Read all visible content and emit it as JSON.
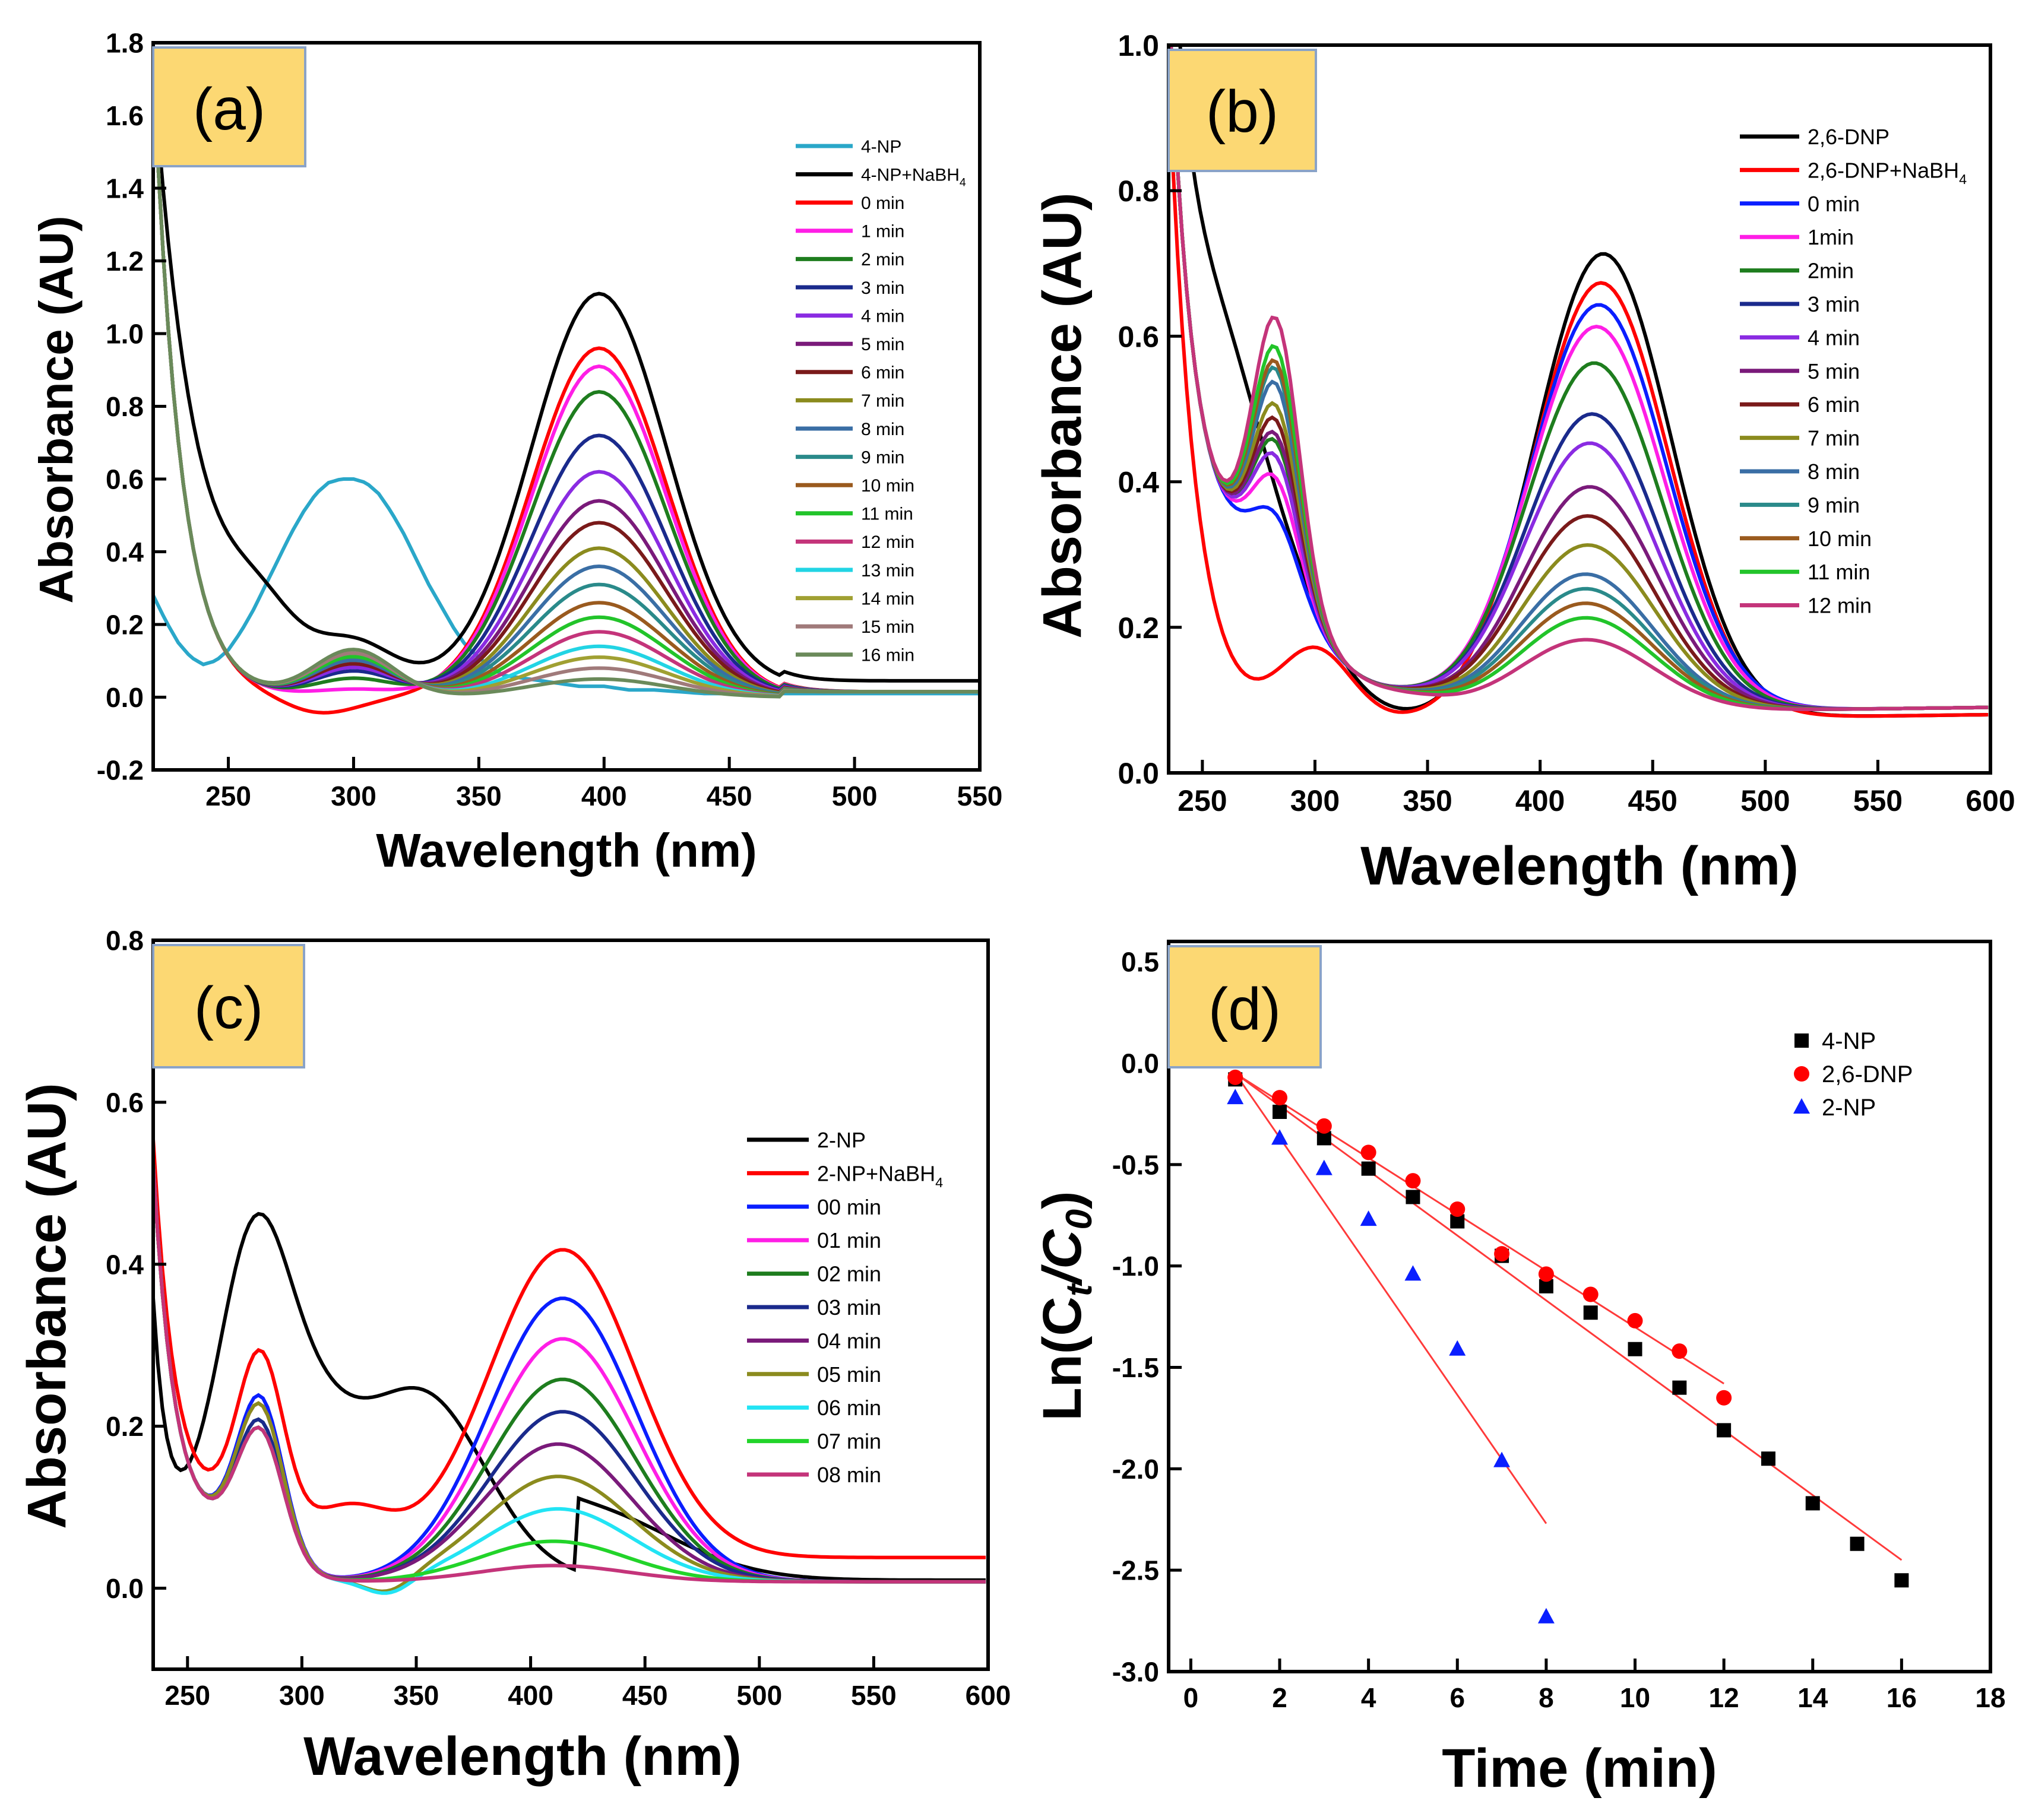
{
  "chart_data": [
    {
      "panel": "(a)",
      "type": "line",
      "xlabel": "Wavelength (nm)",
      "ylabel": "Absorbance (AU)",
      "xlim": [
        220,
        550
      ],
      "ylim": [
        -0.2,
        1.8
      ],
      "xticks": [
        250,
        300,
        350,
        400,
        450,
        500,
        550
      ],
      "yticks": [
        -0.2,
        0.0,
        0.2,
        0.4,
        0.6,
        0.8,
        1.0,
        1.2,
        1.4,
        1.6,
        1.8
      ],
      "legend_position": "top-right",
      "series": [
        {
          "name": "4-NP",
          "color": "#2aa7c9",
          "x": [
            220,
            225,
            230,
            235,
            240,
            245,
            250,
            255,
            260,
            265,
            270,
            275,
            280,
            285,
            290,
            295,
            300,
            305,
            310,
            315,
            320,
            325,
            330,
            335,
            340,
            345,
            350,
            355,
            360,
            370,
            380,
            390,
            400,
            410,
            420,
            440,
            460,
            480,
            500,
            520,
            550
          ],
          "values": [
            0.28,
            0.21,
            0.15,
            0.11,
            0.09,
            0.1,
            0.13,
            0.18,
            0.24,
            0.31,
            0.38,
            0.45,
            0.51,
            0.56,
            0.59,
            0.6,
            0.6,
            0.59,
            0.56,
            0.51,
            0.45,
            0.38,
            0.31,
            0.25,
            0.19,
            0.14,
            0.11,
            0.08,
            0.06,
            0.05,
            0.04,
            0.03,
            0.03,
            0.02,
            0.02,
            0.01,
            0.01,
            0.01,
            0.01,
            0.01,
            0.01
          ]
        },
        {
          "name": "4-NP+NaBH₄",
          "color": "#000000",
          "peak400": 1.08,
          "peak300": 0.11,
          "base270": 0.25
        },
        {
          "name": "0 min",
          "color": "#ff0000",
          "peak400": 0.96,
          "peak300": -0.01
        },
        {
          "name": "1 min",
          "color": "#ff1ee6",
          "peak400": 0.91,
          "peak300": 0.02
        },
        {
          "name": "2 min",
          "color": "#1e7d1e",
          "peak400": 0.84,
          "peak300": 0.05
        },
        {
          "name": "3 min",
          "color": "#1a2a8c",
          "peak400": 0.72,
          "peak300": 0.07
        },
        {
          "name": "4 min",
          "color": "#8a2be2",
          "peak400": 0.62,
          "peak300": 0.08
        },
        {
          "name": "5 min",
          "color": "#7a1a7a",
          "peak400": 0.54,
          "peak300": 0.09
        },
        {
          "name": "6 min",
          "color": "#7a1a1a",
          "peak400": 0.48,
          "peak300": 0.09
        },
        {
          "name": "7 min",
          "color": "#8b8b1e",
          "peak400": 0.41,
          "peak300": 0.1
        },
        {
          "name": "8 min",
          "color": "#3a6ea5",
          "peak400": 0.36,
          "peak300": 0.1
        },
        {
          "name": "9 min",
          "color": "#2a8a8a",
          "peak400": 0.31,
          "peak300": 0.11
        },
        {
          "name": "10 min",
          "color": "#9a5a1e",
          "peak400": 0.26,
          "peak300": 0.11
        },
        {
          "name": "11 min",
          "color": "#22c42a",
          "peak400": 0.22,
          "peak300": 0.11
        },
        {
          "name": "12 min",
          "color": "#c4347a",
          "peak400": 0.18,
          "peak300": 0.12
        },
        {
          "name": "13 min",
          "color": "#22d4e4",
          "peak400": 0.14,
          "peak300": 0.12
        },
        {
          "name": "14 min",
          "color": "#a0a032",
          "peak400": 0.11,
          "peak300": 0.12
        },
        {
          "name": "15 min",
          "color": "#a07a7a",
          "peak400": 0.08,
          "peak300": 0.12
        },
        {
          "name": "16 min",
          "color": "#6a8a5a",
          "peak400": 0.05,
          "peak300": 0.13
        }
      ]
    },
    {
      "panel": "(b)",
      "type": "line",
      "xlabel": "Wavelength (nm)",
      "ylabel": "Absorbance (AU)",
      "xlim": [
        235,
        600
      ],
      "ylim": [
        0.0,
        1.0
      ],
      "xticks": [
        250,
        300,
        350,
        400,
        450,
        500,
        550,
        600
      ],
      "yticks": [
        0.0,
        0.2,
        0.4,
        0.6,
        0.8,
        1.0
      ],
      "legend_position": "top-right",
      "series": [
        {
          "name": "2,6-DNP",
          "color": "#000000",
          "peak": 0.64,
          "peakx": 428,
          "shoulder": 0.63
        },
        {
          "name": "2,6-DNP+NaBH₄",
          "color": "#ff0000",
          "peak": 0.6,
          "peakx": 427,
          "shoulder": 0.0
        },
        {
          "name": "0 min",
          "color": "#0a1eff",
          "peak": 0.56,
          "peakx": 426,
          "shoulder": 0.3
        },
        {
          "name": "1min",
          "color": "#ff1ee6",
          "peak": 0.53,
          "peakx": 425,
          "shoulder": 0.35
        },
        {
          "name": "2min",
          "color": "#1e7d1e",
          "peak": 0.48,
          "peakx": 424,
          "shoulder": 0.4
        },
        {
          "name": "3 min",
          "color": "#1a2a8c",
          "peak": 0.41,
          "peakx": 423,
          "shoulder": 0.38
        },
        {
          "name": "4 min",
          "color": "#8a2be2",
          "peak": 0.37,
          "peakx": 422,
          "shoulder": 0.38
        },
        {
          "name": "5 min",
          "color": "#7a1a7a",
          "peak": 0.31,
          "peakx": 422,
          "shoulder": 0.41
        },
        {
          "name": "6 min",
          "color": "#7a1a1a",
          "peak": 0.27,
          "peakx": 421,
          "shoulder": 0.43
        },
        {
          "name": "7 min",
          "color": "#8b8b1e",
          "peak": 0.23,
          "peakx": 421,
          "shoulder": 0.45
        },
        {
          "name": "8 min",
          "color": "#3a6ea5",
          "peak": 0.19,
          "peakx": 420,
          "shoulder": 0.48
        },
        {
          "name": "9 min",
          "color": "#2a8a8a",
          "peak": 0.17,
          "peakx": 420,
          "shoulder": 0.5
        },
        {
          "name": "10 min",
          "color": "#9a5a1e",
          "peak": 0.15,
          "peakx": 420,
          "shoulder": 0.51
        },
        {
          "name": "11 min",
          "color": "#22c42a",
          "peak": 0.13,
          "peakx": 420,
          "shoulder": 0.53
        },
        {
          "name": "12 min",
          "color": "#c4347a",
          "peak": 0.1,
          "peakx": 420,
          "shoulder": 0.57
        }
      ]
    },
    {
      "panel": "(c)",
      "type": "line",
      "xlabel": "Wavelength (nm)",
      "ylabel": "Absorbance (AU)",
      "xlim": [
        235,
        600
      ],
      "ylim": [
        -0.1,
        0.8
      ],
      "xticks": [
        250,
        300,
        350,
        400,
        450,
        500,
        550,
        600
      ],
      "yticks": [
        0.0,
        0.2,
        0.4,
        0.6,
        0.8
      ],
      "legend_position": "middle-right",
      "series": [
        {
          "name": "2-NP",
          "color": "#000000",
          "peak": 0.23,
          "peakx": 352,
          "uv": 0.47
        },
        {
          "name": "2-NP+NaBH₄",
          "color": "#ff0000",
          "peak": 0.38,
          "peakx": 414,
          "uv": 0.31
        },
        {
          "name": "00 min",
          "color": "#0a1eff",
          "peak": 0.35,
          "peakx": 414,
          "uv": 0.29
        },
        {
          "name": "01 min",
          "color": "#ff1ee6",
          "peak": 0.3,
          "peakx": 414,
          "uv": 0.28
        },
        {
          "name": "02 min",
          "color": "#1e7d1e",
          "peak": 0.25,
          "peakx": 414,
          "uv": 0.26
        },
        {
          "name": "03 min",
          "color": "#1a2a8c",
          "peak": 0.21,
          "peakx": 414,
          "uv": 0.26
        },
        {
          "name": "04 min",
          "color": "#7a1a7a",
          "peak": 0.17,
          "peakx": 412,
          "uv": 0.25
        },
        {
          "name": "05 min",
          "color": "#8b8b1e",
          "peak": 0.13,
          "peakx": 412,
          "uv": 0.28
        },
        {
          "name": "06 min",
          "color": "#22e4f4",
          "peak": 0.09,
          "peakx": 412,
          "uv": 0.25
        },
        {
          "name": "07 min",
          "color": "#22d42a",
          "peak": 0.05,
          "peakx": 410,
          "uv": 0.25
        },
        {
          "name": "08 min",
          "color": "#c4347a",
          "peak": 0.02,
          "peakx": 410,
          "uv": 0.25
        }
      ]
    },
    {
      "panel": "(d)",
      "type": "scatter",
      "xlabel": "Time (min)",
      "ylabel": "Ln(C",
      "ylabel_sub_t": "t",
      "ylabel_mid": "/C",
      "ylabel_sub_0": "0",
      "ylabel_end": ")",
      "xlim": [
        -0.5,
        18
      ],
      "ylim": [
        -3.0,
        0.6
      ],
      "xticks": [
        0,
        2,
        4,
        6,
        8,
        10,
        12,
        14,
        16,
        18
      ],
      "yticks": [
        -3.0,
        -2.5,
        -2.0,
        -1.5,
        -1.0,
        -0.5,
        0.0,
        0.5
      ],
      "legend_position": "top-right",
      "series": [
        {
          "name": "4-NP",
          "color": "#000000",
          "marker": "square",
          "x": [
            1,
            2,
            3,
            4,
            5,
            6,
            7,
            8,
            9,
            10,
            11,
            12,
            13,
            14,
            15,
            16
          ],
          "values": [
            -0.08,
            -0.24,
            -0.37,
            -0.52,
            -0.66,
            -0.78,
            -0.95,
            -1.1,
            -1.23,
            -1.41,
            -1.6,
            -1.81,
            -1.95,
            -2.17,
            -2.37,
            -2.55
          ],
          "fit": [
            [
              1,
              -0.05
            ],
            [
              16,
              -2.45
            ]
          ]
        },
        {
          "name": "2,6-DNP",
          "color": "#ff0000",
          "marker": "circle",
          "x": [
            1,
            2,
            3,
            4,
            5,
            6,
            7,
            8,
            9,
            10,
            11,
            12
          ],
          "values": [
            -0.07,
            -0.17,
            -0.31,
            -0.44,
            -0.58,
            -0.72,
            -0.94,
            -1.04,
            -1.14,
            -1.27,
            -1.42,
            -1.65
          ],
          "fit": [
            [
              1,
              -0.05
            ],
            [
              12,
              -1.58
            ]
          ]
        },
        {
          "name": "2-NP",
          "color": "#0a1eff",
          "marker": "triangle",
          "x": [
            1,
            2,
            3,
            4,
            5,
            6,
            7,
            8
          ],
          "values": [
            -0.17,
            -0.37,
            -0.52,
            -0.77,
            -1.04,
            -1.41,
            -1.96,
            -2.73
          ],
          "fit": [
            [
              1,
              -0.05
            ],
            [
              8,
              -2.27
            ]
          ]
        }
      ]
    }
  ],
  "panel_labels": [
    "(a)",
    "(b)",
    "(c)",
    "(d)"
  ],
  "colors": {
    "label_box_fill": "#fcd873",
    "label_box_stroke": "#8aa3c8",
    "fit_line": "#ff3a3a"
  }
}
